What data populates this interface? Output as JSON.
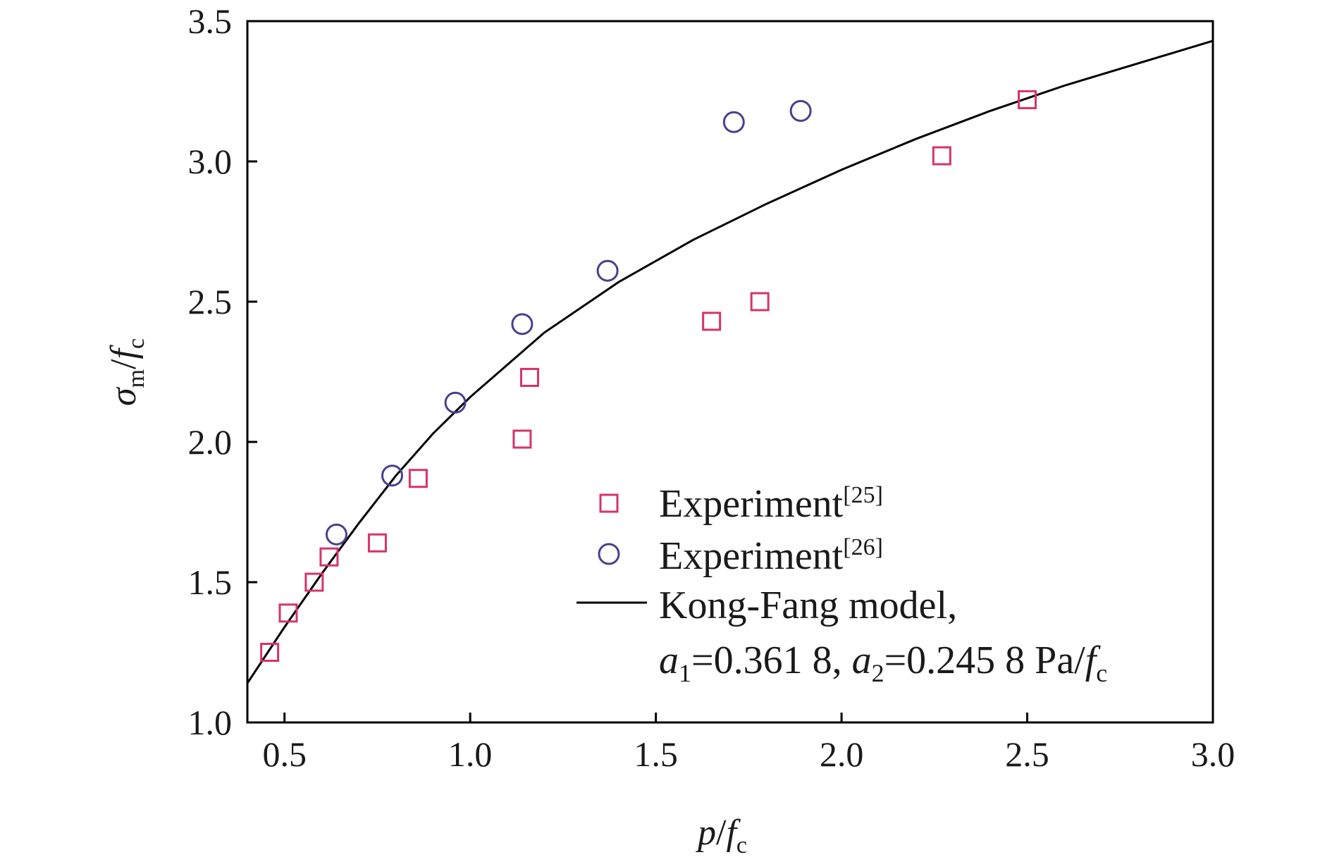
{
  "chart_data": {
    "type": "scatter",
    "xlabel": "p/f_c",
    "ylabel": "σ_m/f_c",
    "xlim": [
      0.4,
      3.0
    ],
    "ylim": [
      1.0,
      3.5
    ],
    "x_ticks": [
      "0.5",
      "1.0",
      "1.5",
      "2.0",
      "2.5",
      "3.0"
    ],
    "y_ticks": [
      "1.0",
      "1.5",
      "2.0",
      "2.5",
      "3.0",
      "3.5"
    ],
    "grid": false,
    "legend_position": "bottom-right",
    "colors": {
      "exp25": "#d6336c",
      "exp26": "#4b3f8f",
      "model": "#000000",
      "axes": "#000000"
    },
    "series": [
      {
        "name": "Experiment[25]",
        "marker": "square",
        "points": [
          [
            0.46,
            1.25
          ],
          [
            0.51,
            1.39
          ],
          [
            0.58,
            1.5
          ],
          [
            0.62,
            1.59
          ],
          [
            0.75,
            1.64
          ],
          [
            0.86,
            1.87
          ],
          [
            1.14,
            2.01
          ],
          [
            1.16,
            2.23
          ],
          [
            1.65,
            2.43
          ],
          [
            1.78,
            2.5
          ],
          [
            2.27,
            3.02
          ],
          [
            2.5,
            3.22
          ]
        ]
      },
      {
        "name": "Experiment[26]",
        "marker": "circle",
        "points": [
          [
            0.64,
            1.67
          ],
          [
            0.79,
            1.88
          ],
          [
            0.96,
            2.14
          ],
          [
            1.14,
            2.42
          ],
          [
            1.37,
            2.61
          ],
          [
            1.71,
            3.14
          ],
          [
            1.89,
            3.18
          ]
        ]
      },
      {
        "name": "Kong-Fang model,",
        "marker": "line",
        "points": [
          [
            0.4,
            1.14
          ],
          [
            0.5,
            1.34
          ],
          [
            0.6,
            1.53
          ],
          [
            0.7,
            1.71
          ],
          [
            0.8,
            1.88
          ],
          [
            0.9,
            2.03
          ],
          [
            1.0,
            2.16
          ],
          [
            1.2,
            2.39
          ],
          [
            1.4,
            2.57
          ],
          [
            1.6,
            2.72
          ],
          [
            1.8,
            2.85
          ],
          [
            2.0,
            2.97
          ],
          [
            2.2,
            3.08
          ],
          [
            2.4,
            3.18
          ],
          [
            2.6,
            3.27
          ],
          [
            2.8,
            3.35
          ],
          [
            3.0,
            3.43
          ]
        ]
      }
    ],
    "legend": {
      "exp25_label": "Experiment",
      "exp25_ref": "[25]",
      "exp26_label": "Experiment",
      "exp26_ref": "[26]",
      "model_label": "Kong-Fang model,",
      "param_a1_sym": "a",
      "param_a1_sub": "1",
      "param_a1_val": "=0.361 8, ",
      "param_a2_sym": "a",
      "param_a2_sub": "2",
      "param_a2_val": "=0.245 8 Pa/",
      "param_f_sym": "f",
      "param_f_sub": "c"
    },
    "axis_text": {
      "x_var": "p",
      "x_slash": "/",
      "x_f": "f",
      "x_sub": "c",
      "y_sigma": "σ",
      "y_sub_m": "m",
      "y_slash": "/",
      "y_f": "f",
      "y_sub_c": "c"
    }
  }
}
